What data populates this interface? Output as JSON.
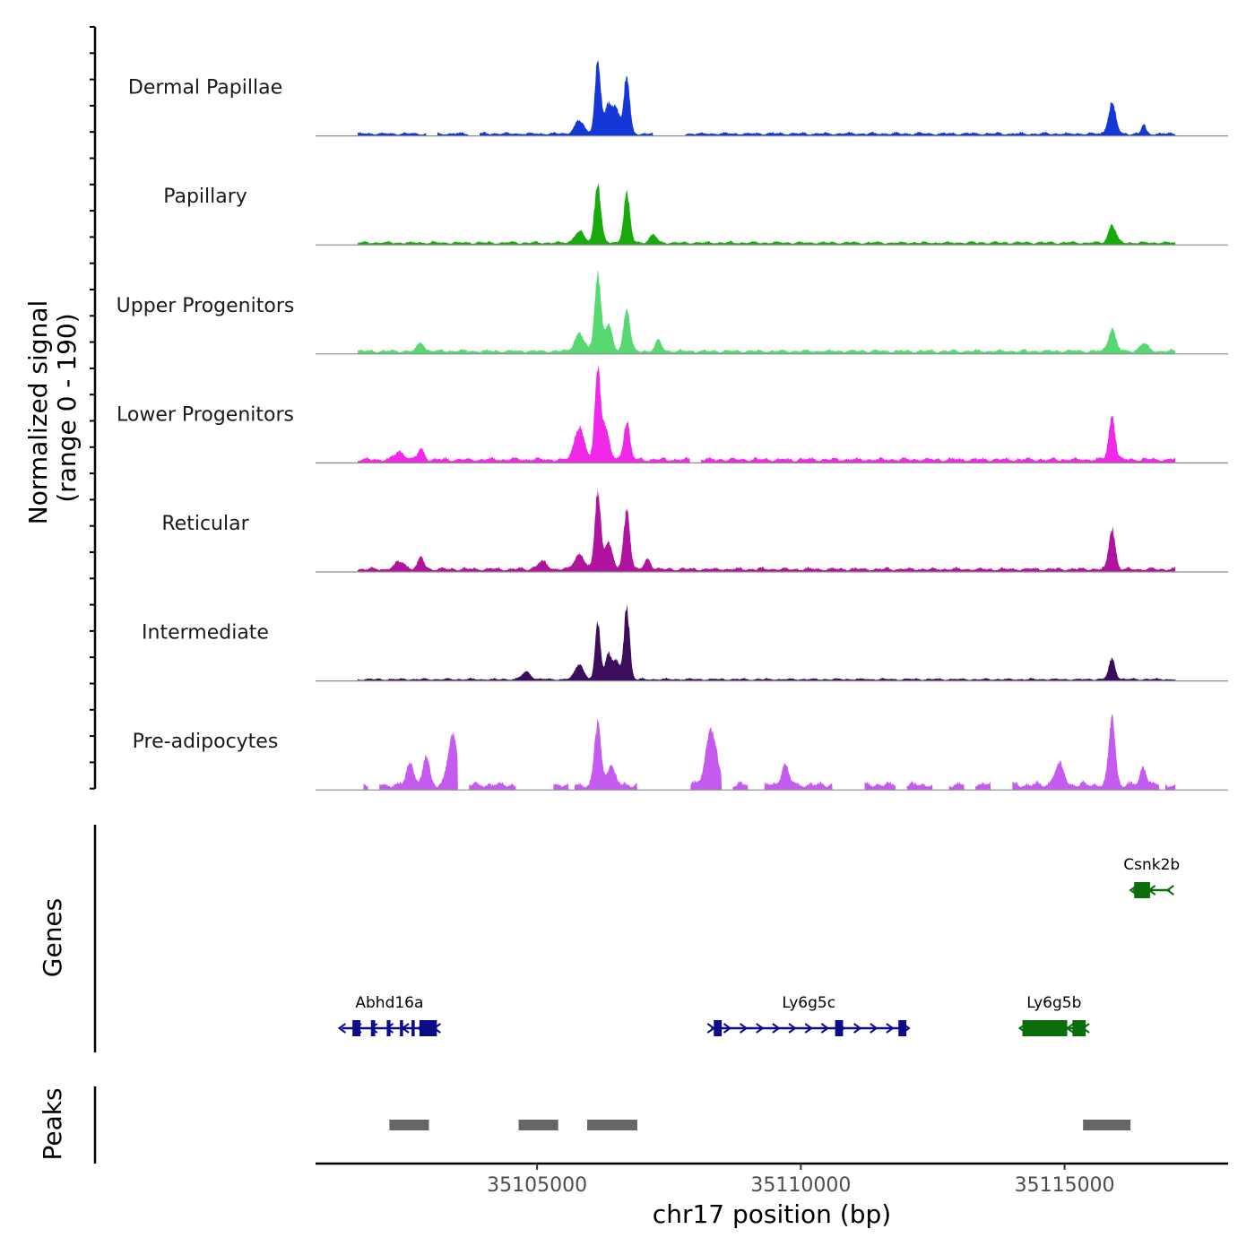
{
  "chart_data": {
    "type": "area",
    "title": "",
    "chromosome": "chr17",
    "xlabel": "chr17 position (bp)",
    "ylabel": "Normalized signal",
    "ylabel_range": "(range 0 - 190)",
    "xlim": [
      35100800,
      35118100
    ],
    "ylim": [
      0,
      190
    ],
    "x_ticks": [
      35105000,
      35110000,
      35115000
    ],
    "x_tick_labels": [
      "35105000",
      "35110000",
      "35115000"
    ],
    "signal_extent": [
      35101600,
      35117100
    ],
    "panel_labels": {
      "genes": "Genes",
      "peaks": "Peaks"
    },
    "tracks": [
      {
        "name": "Dermal Papillae",
        "color": "#1438d8",
        "background": 8,
        "gaps": [
          [
            35102900,
            35103100
          ],
          [
            35103700,
            35103900
          ],
          [
            35107200,
            35107800
          ]
        ],
        "peaks": [
          {
            "center": 35105800,
            "height": 25,
            "width": 90
          },
          {
            "center": 35106150,
            "height": 140,
            "width": 55
          },
          {
            "center": 35106350,
            "height": 55,
            "width": 70
          },
          {
            "center": 35106500,
            "height": 50,
            "width": 60
          },
          {
            "center": 35106700,
            "height": 115,
            "width": 55
          },
          {
            "center": 35115900,
            "height": 60,
            "width": 70
          },
          {
            "center": 35116500,
            "height": 18,
            "width": 40
          }
        ]
      },
      {
        "name": "Papillary",
        "color": "#18aa0c",
        "background": 8,
        "gaps": [],
        "peaks": [
          {
            "center": 35105800,
            "height": 22,
            "width": 90
          },
          {
            "center": 35106150,
            "height": 115,
            "width": 60
          },
          {
            "center": 35106700,
            "height": 95,
            "width": 60
          },
          {
            "center": 35107200,
            "height": 15,
            "width": 70
          },
          {
            "center": 35115900,
            "height": 35,
            "width": 70
          }
        ]
      },
      {
        "name": "Upper Progenitors",
        "color": "#58d870",
        "background": 10,
        "gaps": [],
        "peaks": [
          {
            "center": 35102800,
            "height": 18,
            "width": 60
          },
          {
            "center": 35105800,
            "height": 35,
            "width": 90
          },
          {
            "center": 35106150,
            "height": 150,
            "width": 60
          },
          {
            "center": 35106350,
            "height": 50,
            "width": 70
          },
          {
            "center": 35106700,
            "height": 85,
            "width": 60
          },
          {
            "center": 35107300,
            "height": 20,
            "width": 60
          },
          {
            "center": 35115900,
            "height": 45,
            "width": 70
          },
          {
            "center": 35116500,
            "height": 15,
            "width": 80
          }
        ]
      },
      {
        "name": "Lower Progenitors",
        "color": "#f028e8",
        "background": 12,
        "gaps": [
          [
            35107900,
            35108100
          ]
        ],
        "peaks": [
          {
            "center": 35102400,
            "height": 15,
            "width": 100
          },
          {
            "center": 35102800,
            "height": 20,
            "width": 60
          },
          {
            "center": 35105800,
            "height": 65,
            "width": 90
          },
          {
            "center": 35106150,
            "height": 175,
            "width": 55
          },
          {
            "center": 35106300,
            "height": 60,
            "width": 70
          },
          {
            "center": 35106700,
            "height": 75,
            "width": 60
          },
          {
            "center": 35115900,
            "height": 85,
            "width": 60
          }
        ]
      },
      {
        "name": "Reticular",
        "color": "#b0149e",
        "background": 10,
        "gaps": [],
        "peaks": [
          {
            "center": 35102400,
            "height": 15,
            "width": 100
          },
          {
            "center": 35102800,
            "height": 22,
            "width": 60
          },
          {
            "center": 35105100,
            "height": 15,
            "width": 90
          },
          {
            "center": 35105800,
            "height": 30,
            "width": 90
          },
          {
            "center": 35106150,
            "height": 150,
            "width": 55
          },
          {
            "center": 35106350,
            "height": 55,
            "width": 70
          },
          {
            "center": 35106700,
            "height": 115,
            "width": 60
          },
          {
            "center": 35107100,
            "height": 20,
            "width": 60
          },
          {
            "center": 35115900,
            "height": 80,
            "width": 60
          }
        ]
      },
      {
        "name": "Intermediate",
        "color": "#3c0d5c",
        "background": 6,
        "gaps": [],
        "peaks": [
          {
            "center": 35104800,
            "height": 15,
            "width": 80
          },
          {
            "center": 35105800,
            "height": 30,
            "width": 80
          },
          {
            "center": 35106150,
            "height": 110,
            "width": 50
          },
          {
            "center": 35106350,
            "height": 50,
            "width": 60
          },
          {
            "center": 35106500,
            "height": 35,
            "width": 60
          },
          {
            "center": 35106700,
            "height": 140,
            "width": 55
          },
          {
            "center": 35115900,
            "height": 40,
            "width": 60
          }
        ]
      },
      {
        "name": "Pre-adipocytes",
        "color": "#c45af0",
        "background": 18,
        "gaps": [
          [
            35101600,
            35101700
          ],
          [
            35101800,
            35102000
          ],
          [
            35103500,
            35103700
          ],
          [
            35104600,
            35105300
          ],
          [
            35105600,
            35105700
          ],
          [
            35106900,
            35107900
          ],
          [
            35108500,
            35108700
          ],
          [
            35109000,
            35109300
          ],
          [
            35110600,
            35111200
          ],
          [
            35111800,
            35112000
          ],
          [
            35112500,
            35112800
          ],
          [
            35113100,
            35113300
          ],
          [
            35113600,
            35114000
          ],
          [
            35116800,
            35116900
          ]
        ],
        "peaks": [
          {
            "center": 35102600,
            "height": 45,
            "width": 70
          },
          {
            "center": 35102900,
            "height": 55,
            "width": 60
          },
          {
            "center": 35103400,
            "height": 95,
            "width": 90
          },
          {
            "center": 35106150,
            "height": 120,
            "width": 60
          },
          {
            "center": 35106400,
            "height": 40,
            "width": 70
          },
          {
            "center": 35108300,
            "height": 110,
            "width": 100
          },
          {
            "center": 35109700,
            "height": 40,
            "width": 70
          },
          {
            "center": 35114900,
            "height": 40,
            "width": 90
          },
          {
            "center": 35115900,
            "height": 130,
            "width": 60
          },
          {
            "center": 35116500,
            "height": 35,
            "width": 60
          }
        ]
      }
    ],
    "genes": [
      {
        "name": "Abhd16a",
        "strand": "-",
        "start": 35101300,
        "end": 35103100,
        "row": 2,
        "color": "#0b0b8a",
        "exons": [
          [
            35101500,
            35101650
          ],
          [
            35101850,
            35101930
          ],
          [
            35102150,
            35102220
          ],
          [
            35102400,
            35102460
          ],
          [
            35102620,
            35102680
          ],
          [
            35102770,
            35102830
          ],
          [
            35102800,
            35103100
          ]
        ]
      },
      {
        "name": "Ly6g5c",
        "strand": "+",
        "start": 35108300,
        "end": 35112000,
        "row": 2,
        "color": "#0b0b8a",
        "exons": [
          [
            35108350,
            35108500
          ],
          [
            35110650,
            35110800
          ],
          [
            35111850,
            35112000
          ]
        ]
      },
      {
        "name": "Ly6g5b",
        "strand": "-",
        "start": 35114200,
        "end": 35115400,
        "row": 2,
        "color": "#0b6e0b",
        "exons": [
          [
            35114200,
            35115050
          ],
          [
            35115150,
            35115400
          ]
        ]
      },
      {
        "name": "Csnk2b",
        "strand": "-",
        "start": 35116300,
        "end": 35117000,
        "row": 1,
        "color": "#0b6e0b",
        "exons": [
          [
            35116320,
            35116620
          ]
        ]
      }
    ],
    "peak_regions": [
      [
        35102200,
        35102950
      ],
      [
        35104650,
        35105400
      ],
      [
        35105950,
        35106900
      ],
      [
        35115350,
        35116250
      ]
    ]
  }
}
